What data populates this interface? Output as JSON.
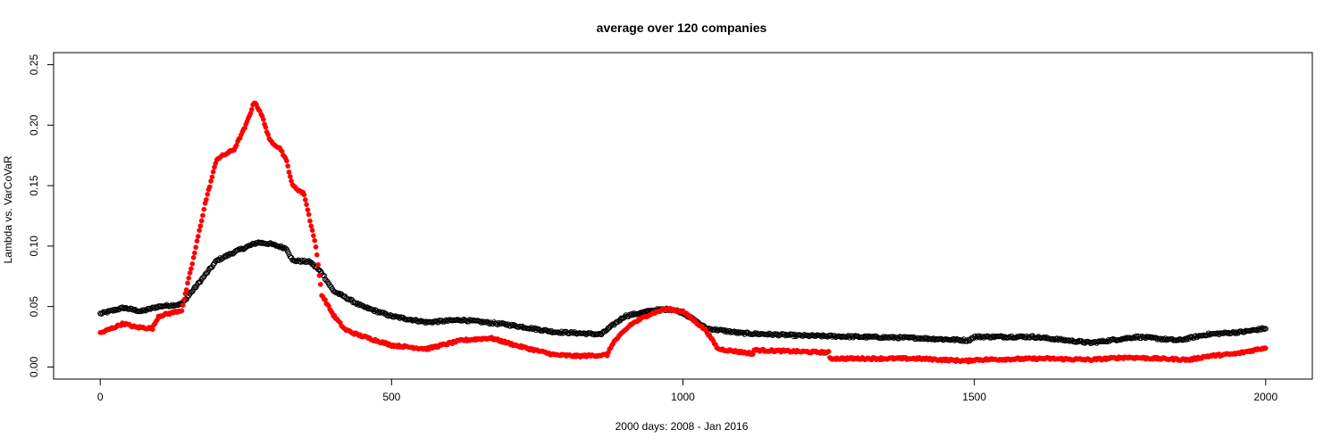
{
  "chart_data": {
    "type": "scatter",
    "title": "average over 120 companies",
    "xlabel": "2000 days: 2008 - Jan 2016",
    "ylabel": "Lambda vs. VarCoVaR",
    "xlim": [
      -80,
      2080
    ],
    "ylim": [
      -0.01,
      0.26
    ],
    "x_ticks": [
      0,
      500,
      1000,
      1500,
      2000
    ],
    "y_ticks": [
      0.0,
      0.05,
      0.1,
      0.15,
      0.2,
      0.25
    ],
    "y_tick_labels": [
      "0.00",
      "0.05",
      "0.10",
      "0.15",
      "0.20",
      "0.25"
    ],
    "grid": false,
    "series": [
      {
        "color": "#000000",
        "marker": "open-circle",
        "x": [
          0,
          40,
          70,
          100,
          140,
          170,
          200,
          230,
          270,
          290,
          320,
          330,
          360,
          380,
          400,
          450,
          500,
          560,
          620,
          700,
          780,
          860,
          870,
          900,
          950,
          980,
          1000,
          1040,
          1100,
          1200,
          1300,
          1400,
          1490,
          1500,
          1600,
          1700,
          1780,
          1850,
          1900,
          1960,
          2000
        ],
        "y": [
          0.044,
          0.049,
          0.046,
          0.05,
          0.052,
          0.07,
          0.088,
          0.095,
          0.103,
          0.102,
          0.098,
          0.088,
          0.087,
          0.078,
          0.063,
          0.05,
          0.042,
          0.037,
          0.039,
          0.035,
          0.029,
          0.027,
          0.031,
          0.042,
          0.047,
          0.048,
          0.045,
          0.032,
          0.028,
          0.026,
          0.025,
          0.024,
          0.022,
          0.025,
          0.025,
          0.02,
          0.025,
          0.022,
          0.027,
          0.029,
          0.032
        ]
      },
      {
        "color": "#ff0000",
        "marker": "filled-circle",
        "x": [
          0,
          20,
          40,
          60,
          90,
          100,
          140,
          160,
          180,
          200,
          230,
          250,
          265,
          280,
          290,
          310,
          320,
          330,
          350,
          370,
          380,
          400,
          420,
          440,
          500,
          560,
          620,
          670,
          720,
          780,
          820,
          870,
          880,
          910,
          940,
          970,
          1000,
          1040,
          1060,
          1120,
          1121,
          1250,
          1251,
          1400,
          1490,
          1500,
          1620,
          1700,
          1760,
          1870,
          1900,
          1950,
          2000
        ],
        "y": [
          0.028,
          0.032,
          0.036,
          0.033,
          0.032,
          0.042,
          0.047,
          0.09,
          0.135,
          0.172,
          0.18,
          0.2,
          0.22,
          0.205,
          0.188,
          0.18,
          0.17,
          0.15,
          0.143,
          0.1,
          0.06,
          0.043,
          0.031,
          0.027,
          0.018,
          0.015,
          0.022,
          0.024,
          0.017,
          0.01,
          0.009,
          0.01,
          0.02,
          0.035,
          0.043,
          0.048,
          0.046,
          0.03,
          0.015,
          0.011,
          0.014,
          0.012,
          0.007,
          0.007,
          0.005,
          0.006,
          0.007,
          0.006,
          0.008,
          0.006,
          0.009,
          0.011,
          0.016
        ]
      }
    ]
  }
}
